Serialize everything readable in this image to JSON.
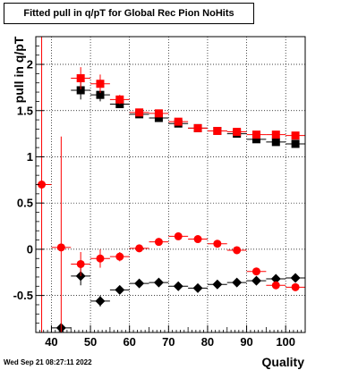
{
  "chart_data": {
    "type": "scatter",
    "title": "Fitted pull in q/pT for Global Rec Pion NoHits",
    "xlabel": "Quality",
    "ylabel": "pull in q/pT",
    "xlim": [
      36,
      105
    ],
    "ylim": [
      -0.9,
      2.3
    ],
    "xticks": [
      40,
      50,
      60,
      70,
      80,
      90,
      100
    ],
    "yticks": [
      -0.5,
      0,
      0.5,
      1,
      1.5,
      2
    ],
    "grid": true,
    "bin_half_width": 2.5,
    "series": [
      {
        "marker": "square",
        "color": "#000000",
        "points": [
          {
            "x": 47.5,
            "y": 1.72,
            "yerr": 0.1
          },
          {
            "x": 52.5,
            "y": 1.67,
            "yerr": 0.07
          },
          {
            "x": 57.5,
            "y": 1.57,
            "yerr": 0.04
          },
          {
            "x": 62.5,
            "y": 1.46,
            "yerr": 0.03
          },
          {
            "x": 67.5,
            "y": 1.42,
            "yerr": 0.02
          },
          {
            "x": 72.5,
            "y": 1.36,
            "yerr": 0.02
          },
          {
            "x": 77.5,
            "y": 1.31,
            "yerr": 0.02
          },
          {
            "x": 82.5,
            "y": 1.28,
            "yerr": 0.02
          },
          {
            "x": 87.5,
            "y": 1.25,
            "yerr": 0.02
          },
          {
            "x": 92.5,
            "y": 1.19,
            "yerr": 0.02
          },
          {
            "x": 97.5,
            "y": 1.16,
            "yerr": 0.02
          },
          {
            "x": 102.5,
            "y": 1.14,
            "yerr": 0.02
          }
        ]
      },
      {
        "marker": "square",
        "color": "#ff0000",
        "points": [
          {
            "x": 47.5,
            "y": 1.85,
            "yerr": 0.12
          },
          {
            "x": 52.5,
            "y": 1.79,
            "yerr": 0.1
          },
          {
            "x": 57.5,
            "y": 1.62,
            "yerr": 0.05
          },
          {
            "x": 62.5,
            "y": 1.48,
            "yerr": 0.03
          },
          {
            "x": 67.5,
            "y": 1.47,
            "yerr": 0.03
          },
          {
            "x": 72.5,
            "y": 1.38,
            "yerr": 0.02
          },
          {
            "x": 77.5,
            "y": 1.31,
            "yerr": 0.02
          },
          {
            "x": 82.5,
            "y": 1.28,
            "yerr": 0.02
          },
          {
            "x": 87.5,
            "y": 1.27,
            "yerr": 0.02
          },
          {
            "x": 92.5,
            "y": 1.24,
            "yerr": 0.02
          },
          {
            "x": 97.5,
            "y": 1.24,
            "yerr": 0.02
          },
          {
            "x": 102.5,
            "y": 1.23,
            "yerr": 0.02
          }
        ]
      },
      {
        "marker": "diamond",
        "color": "#000000",
        "points": [
          {
            "x": 42.5,
            "y": -0.85,
            "yerr": 0.05
          },
          {
            "x": 47.5,
            "y": -0.29,
            "yerr": 0.1
          },
          {
            "x": 52.5,
            "y": -0.56,
            "yerr": 0.06
          },
          {
            "x": 57.5,
            "y": -0.44,
            "yerr": 0.04
          },
          {
            "x": 62.5,
            "y": -0.37,
            "yerr": 0.02
          },
          {
            "x": 67.5,
            "y": -0.36,
            "yerr": 0.02
          },
          {
            "x": 72.5,
            "y": -0.4,
            "yerr": 0.02
          },
          {
            "x": 77.5,
            "y": -0.42,
            "yerr": 0.02
          },
          {
            "x": 82.5,
            "y": -0.38,
            "yerr": 0.02
          },
          {
            "x": 87.5,
            "y": -0.36,
            "yerr": 0.02
          },
          {
            "x": 92.5,
            "y": -0.34,
            "yerr": 0.02
          },
          {
            "x": 97.5,
            "y": -0.32,
            "yerr": 0.02
          },
          {
            "x": 102.5,
            "y": -0.31,
            "yerr": 0.02
          }
        ]
      },
      {
        "marker": "circle",
        "color": "#ff0000",
        "points": [
          {
            "x": 37.5,
            "y": 0.7,
            "yerr": 1.9
          },
          {
            "x": 42.5,
            "y": 0.02,
            "yerr": 1.2
          },
          {
            "x": 47.5,
            "y": -0.16,
            "yerr": 0.13
          },
          {
            "x": 52.5,
            "y": -0.1,
            "yerr": 0.1
          },
          {
            "x": 57.5,
            "y": -0.08,
            "yerr": 0.05
          },
          {
            "x": 62.5,
            "y": 0.01,
            "yerr": 0.03
          },
          {
            "x": 67.5,
            "y": 0.08,
            "yerr": 0.02
          },
          {
            "x": 72.5,
            "y": 0.14,
            "yerr": 0.02
          },
          {
            "x": 77.5,
            "y": 0.11,
            "yerr": 0.02
          },
          {
            "x": 82.5,
            "y": 0.06,
            "yerr": 0.02
          },
          {
            "x": 87.5,
            "y": -0.01,
            "yerr": 0.02
          },
          {
            "x": 92.5,
            "y": -0.24,
            "yerr": 0.02
          },
          {
            "x": 97.5,
            "y": -0.39,
            "yerr": 0.02
          },
          {
            "x": 102.5,
            "y": -0.41,
            "yerr": 0.02
          }
        ]
      }
    ]
  },
  "footer": {
    "timestamp": "Wed Sep 21 08:27:11 2022"
  }
}
